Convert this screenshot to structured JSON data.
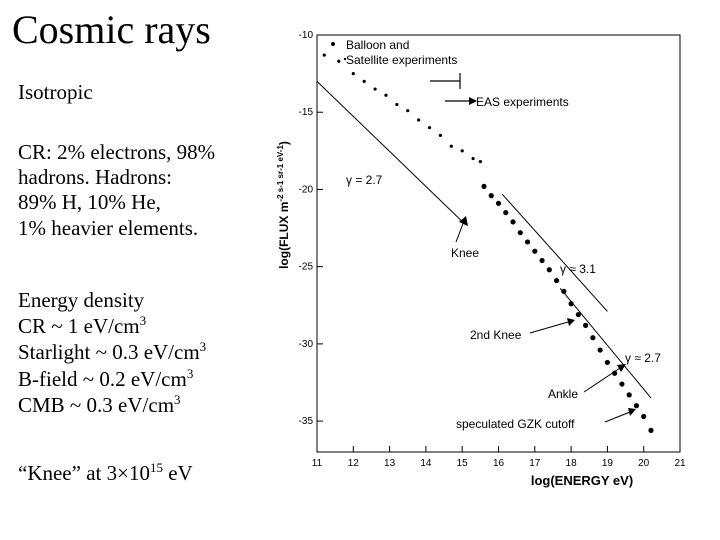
{
  "slide": {
    "title": "Cosmic rays",
    "isotropic": "Isotropic",
    "composition_lines": [
      "CR: 2% electrons, 98%",
      "hadrons.  Hadrons:",
      "89% H, 10% He,",
      "1% heavier elements."
    ],
    "energy_density": {
      "heading": "Energy density",
      "cr": "CR ~ 1 eV/cm",
      "starlight": "Starlight ~ 0.3 eV/cm",
      "bfield": "B-field ~ 0.2 eV/cm",
      "cmb": "CMB ~ 0.3 eV/cm",
      "exp": "3"
    },
    "knee_prefix": "“Knee” at 3",
    "knee_times": "×",
    "knee_ten": "10",
    "knee_exp": "15",
    "knee_unit": " eV"
  },
  "chart_data": {
    "type": "scatter",
    "title": "",
    "xlabel": "log(ENERGY  eV)",
    "ylabel_main": "log(FLUX  m",
    "ylabel_units": "-2 s-1 sr-1 eV-1",
    "ylabel_close": ")",
    "xlim": [
      11,
      21
    ],
    "ylim": [
      -37,
      -10
    ],
    "xticks": [
      11,
      12,
      13,
      14,
      15,
      16,
      17,
      18,
      19,
      20,
      21
    ],
    "yticks": [
      -10,
      -15,
      -20,
      -25,
      -30,
      -35
    ],
    "legend": [
      {
        "label": "Balloon and",
        "marker": "dot"
      },
      {
        "label": "Satellite experiments",
        "marker": "small-dot"
      }
    ],
    "annotations": {
      "eas": "EAS experiments",
      "gamma_27_left": "γ = 2.7",
      "knee": "Knee",
      "gamma_31": "γ  ≈ 3.1",
      "second_knee": "2nd Knee",
      "gamma_27_right": "γ ≈ 2.7",
      "ankle": "Ankle",
      "gzk": "speculated GZK cutoff"
    },
    "balloon_satellite": {
      "x": [
        11.2,
        11.6,
        12.0,
        12.3,
        12.6,
        12.9,
        13.2,
        13.5,
        13.8,
        14.1,
        14.4,
        14.7,
        15.0,
        15.3,
        15.5
      ],
      "y": [
        -11.3,
        -11.7,
        -12.5,
        -13.0,
        -13.5,
        -13.9,
        -14.5,
        -14.9,
        -15.5,
        -16.0,
        -16.5,
        -17.2,
        -17.5,
        -18.0,
        -18.2
      ]
    },
    "eas_data": {
      "x": [
        15.6,
        15.8,
        16.0,
        16.2,
        16.4,
        16.6,
        16.8,
        17.0,
        17.2,
        17.4,
        17.6,
        17.8,
        18.0,
        18.2,
        18.4,
        18.6,
        18.8,
        19.0,
        19.2,
        19.4,
        19.6,
        19.8,
        20.0,
        20.2
      ],
      "y": [
        -19.8,
        -20.4,
        -20.9,
        -21.5,
        -22.1,
        -22.8,
        -23.4,
        -24.0,
        -24.6,
        -25.2,
        -25.9,
        -26.6,
        -27.4,
        -28.1,
        -28.8,
        -29.6,
        -30.4,
        -31.2,
        -31.9,
        -32.6,
        -33.3,
        -34.0,
        -34.7,
        -35.6
      ]
    },
    "gamma_27_line": {
      "x": [
        11.0,
        15.1
      ],
      "y": [
        -13.0,
        -22.3
      ]
    },
    "gamma_31_line": {
      "x": [
        16.1,
        19.0
      ],
      "y": [
        -20.3,
        -27.9
      ]
    },
    "gamma_27_right_line": {
      "x": [
        17.7,
        20.2
      ],
      "y": [
        -26.4,
        -33.5
      ]
    }
  }
}
